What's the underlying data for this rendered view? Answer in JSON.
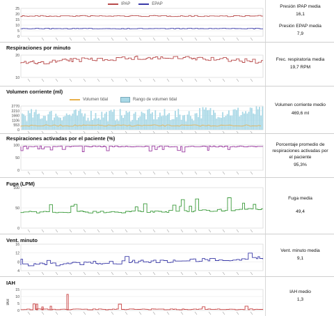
{
  "panels": [
    {
      "id": "pressure",
      "title": "",
      "legend": [
        {
          "name": "IPAP",
          "color": "#b84a4a"
        },
        {
          "name": "EPAP",
          "color": "#3a3aa8"
        }
      ],
      "y_ticks": [
        "25",
        "20",
        "15",
        "10",
        "5",
        "0"
      ],
      "stat_label": "Presión IPAP media",
      "stat_value": "16,1",
      "stat_label_2": "Presión EPAP media",
      "stat_value_2": "7,9"
    },
    {
      "id": "resp-rate",
      "title": "Respiraciones por minuto",
      "y_ticks": [
        "20",
        "10"
      ],
      "stat_label": "Frec. respiratoria media",
      "stat_value": "19,7 RPM"
    },
    {
      "id": "tidal",
      "title": "Volumen corriente (ml)",
      "legend": [
        {
          "name": "Volumen tidal",
          "color": "#e8b04a"
        },
        {
          "name": "Rango de volumen tidal",
          "color": "#a9d8e6"
        }
      ],
      "y_ticks": [
        "2770",
        "2210",
        "1660",
        "1106",
        "553",
        "0"
      ],
      "stat_label": "Volumen corriente medio",
      "stat_value": "469,6 ml"
    },
    {
      "id": "triggered",
      "title": "Respiraciones activadas por el paciente (%)",
      "y_ticks": [
        "100",
        "50",
        "0"
      ],
      "stat_label": "Porcentaje promedio de respiraciones activadas por el paciente",
      "stat_value": "95,3%"
    },
    {
      "id": "leak",
      "title": "Fuga (LPM)",
      "y_ticks": [
        "100",
        "50",
        "0"
      ],
      "stat_label": "Fuga media",
      "stat_value": "49,4"
    },
    {
      "id": "minute-vent",
      "title": "Vent. minuto",
      "y_ticks": [
        "16",
        "12",
        "8",
        "4"
      ],
      "stat_label": "Vent. minuto media",
      "stat_value": "9,1"
    },
    {
      "id": "ahi",
      "title": "IAH",
      "y_axis_label": "IAH",
      "y_ticks": [
        "15",
        "10",
        "5",
        "0"
      ],
      "stat_label": "IAH medio",
      "stat_value": "1,3"
    }
  ],
  "colors": {
    "ipap": "#b84a4a",
    "epap": "#3a3aa8",
    "resp": "#b84a4a",
    "tidal_line": "#e8b04a",
    "tidal_range": "#a9d8e6",
    "triggered": "#9a3aa0",
    "leak": "#3a9a3a",
    "minute_vent": "#3a3aa8",
    "ahi": "#c84040"
  }
}
